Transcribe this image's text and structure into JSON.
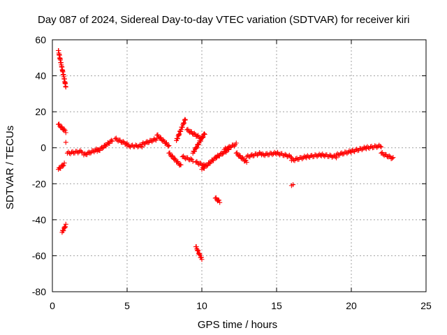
{
  "chart_data": {
    "type": "scatter",
    "title": "Day 087 of 2024, Sidereal Day-to-day VTEC variation (SDTVAR) for receiver kiri",
    "xlabel": "GPS time / hours",
    "ylabel": "SDTVAR / TECUs",
    "xlim": [
      0,
      25
    ],
    "ylim": [
      -80,
      60
    ],
    "xticks": [
      "0",
      "5",
      "10",
      "15",
      "20",
      "25"
    ],
    "yticks": [
      "60",
      "40",
      "20",
      "0",
      "-20",
      "-40",
      "-60",
      "-80"
    ],
    "xtick_values": [
      0,
      5,
      10,
      15,
      20,
      25
    ],
    "ytick_values": [
      60,
      40,
      20,
      0,
      -20,
      -40,
      -60,
      -80
    ],
    "grid": true,
    "marker": "+",
    "color": "#ff0000",
    "segments": [
      {
        "x": [
          0.4,
          0.9
        ],
        "y": [
          54,
          34
        ]
      },
      {
        "x": [
          0.4,
          0.9
        ],
        "y": [
          13,
          9
        ]
      },
      {
        "x": [
          0.4,
          0.8
        ],
        "y": [
          -12,
          -9
        ]
      },
      {
        "x": [
          0.65,
          0.9
        ],
        "y": [
          -47,
          -43
        ]
      },
      {
        "x": [
          1.0,
          2.0
        ],
        "y": [
          -3,
          -2
        ]
      },
      {
        "x": [
          2.1,
          3.0
        ],
        "y": [
          -4,
          -1
        ]
      },
      {
        "x": [
          3.0,
          4.0
        ],
        "y": [
          -2,
          4
        ]
      },
      {
        "x": [
          4.2,
          5.0
        ],
        "y": [
          5,
          2
        ]
      },
      {
        "x": [
          5.0,
          6.0
        ],
        "y": [
          1,
          1
        ]
      },
      {
        "x": [
          6.0,
          7.0
        ],
        "y": [
          2,
          5
        ]
      },
      {
        "x": [
          7.0,
          7.8
        ],
        "y": [
          7,
          1
        ]
      },
      {
        "x": [
          7.8,
          8.6
        ],
        "y": [
          -3,
          -10
        ]
      },
      {
        "x": [
          8.3,
          8.9
        ],
        "y": [
          4,
          16
        ]
      },
      {
        "x": [
          8.7,
          9.4
        ],
        "y": [
          -5,
          -7
        ]
      },
      {
        "x": [
          9.0,
          10.0
        ],
        "y": [
          10,
          5
        ]
      },
      {
        "x": [
          9.4,
          10.2
        ],
        "y": [
          -3,
          8
        ]
      },
      {
        "x": [
          9.6,
          10.2
        ],
        "y": [
          -8,
          -10
        ]
      },
      {
        "x": [
          10.0,
          11.0
        ],
        "y": [
          -12,
          -5
        ]
      },
      {
        "x": [
          10.9,
          11.2
        ],
        "y": [
          -28,
          -30
        ]
      },
      {
        "x": [
          11.0,
          11.8
        ],
        "y": [
          -5,
          -1
        ]
      },
      {
        "x": [
          11.5,
          12.3
        ],
        "y": [
          -1,
          2
        ]
      },
      {
        "x": [
          12.3,
          13.0
        ],
        "y": [
          -3,
          -8
        ]
      },
      {
        "x": [
          13.0,
          14.0
        ],
        "y": [
          -5,
          -3
        ]
      },
      {
        "x": [
          14.0,
          15.0
        ],
        "y": [
          -4,
          -3
        ]
      },
      {
        "x": [
          15.0,
          16.0
        ],
        "y": [
          -3,
          -5
        ]
      },
      {
        "x": [
          16.0,
          17.0
        ],
        "y": [
          -7,
          -5
        ]
      },
      {
        "x": [
          17.0,
          18.0
        ],
        "y": [
          -5,
          -4
        ]
      },
      {
        "x": [
          18.0,
          19.0
        ],
        "y": [
          -4,
          -5
        ]
      },
      {
        "x": [
          19.0,
          20.0
        ],
        "y": [
          -4,
          -2
        ]
      },
      {
        "x": [
          20.0,
          21.0
        ],
        "y": [
          -2,
          0
        ]
      },
      {
        "x": [
          21.0,
          22.0
        ],
        "y": [
          0,
          1
        ]
      },
      {
        "x": [
          22.0,
          22.8
        ],
        "y": [
          -3,
          -6
        ]
      },
      {
        "x": [
          9.6,
          10.0
        ],
        "y": [
          -55,
          -62
        ]
      }
    ],
    "points": [
      {
        "x": 0.9,
        "y": 3
      },
      {
        "x": 16.0,
        "y": -21
      },
      {
        "x": 16.1,
        "y": -20.5
      }
    ]
  }
}
